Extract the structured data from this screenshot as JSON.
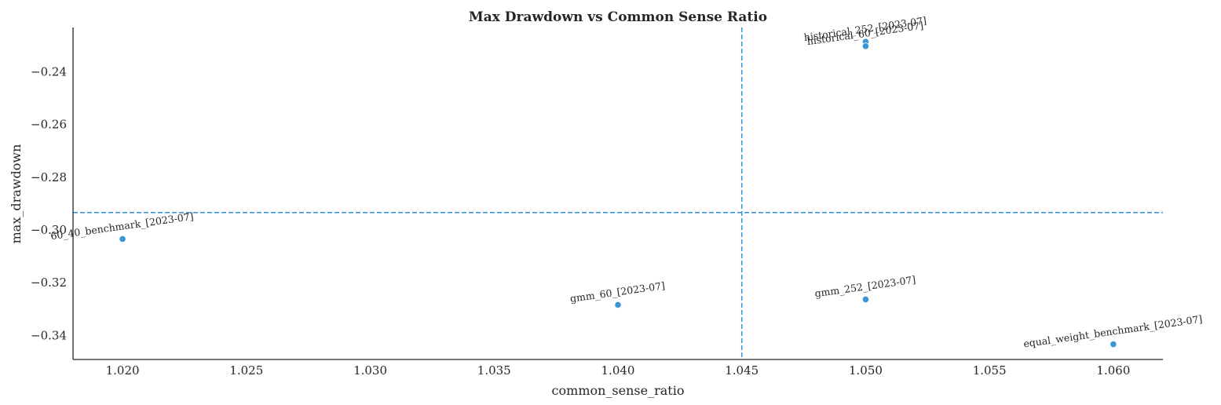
{
  "chart_data": {
    "type": "scatter",
    "title": "Max Drawdown vs Common Sense Ratio",
    "xlabel": "common_sense_ratio",
    "ylabel": "max_drawdown",
    "xlim": [
      1.018,
      1.062
    ],
    "ylim": [
      -0.3491,
      -0.2232
    ],
    "x_ticks": [
      1.02,
      1.025,
      1.03,
      1.035,
      1.04,
      1.045,
      1.05,
      1.055,
      1.06
    ],
    "x_tick_labels": [
      "1.020",
      "1.025",
      "1.030",
      "1.035",
      "1.040",
      "1.045",
      "1.050",
      "1.055",
      "1.060"
    ],
    "y_ticks": [
      -0.24,
      -0.26,
      -0.28,
      -0.3,
      -0.32,
      -0.34
    ],
    "y_tick_labels": [
      "−0.24",
      "−0.26",
      "−0.28",
      "−0.30",
      "−0.32",
      "−0.34"
    ],
    "grid": false,
    "point_color": "#3a96d4",
    "reference_lines": {
      "vertical_x": 1.045,
      "horizontal_y": -0.2934,
      "color": "#3a96d4",
      "style": "dashed"
    },
    "points": [
      {
        "label": "60_40_benchmark_[2023-07]",
        "x": 1.02,
        "y": -0.3034
      },
      {
        "label": "gmm_60_[2023-07]",
        "x": 1.04,
        "y": -0.3284
      },
      {
        "label": "gmm_252_[2023-07]",
        "x": 1.05,
        "y": -0.3263
      },
      {
        "label": "historical_252_[2023-07]",
        "x": 1.05,
        "y": -0.2286
      },
      {
        "label": "historical_60_[2023-07]",
        "x": 1.05,
        "y": -0.2303
      },
      {
        "label": "equal_weight_benchmark_[2023-07]",
        "x": 1.06,
        "y": -0.3433
      }
    ]
  }
}
